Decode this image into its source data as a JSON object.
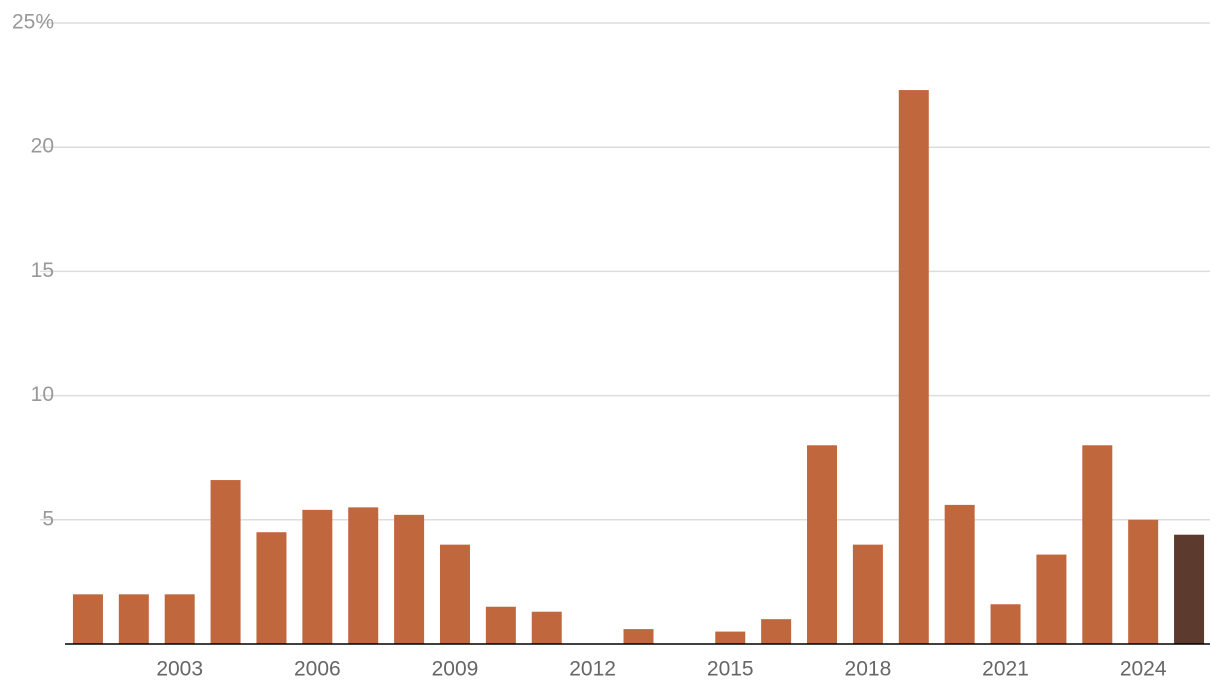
{
  "chart_data": {
    "type": "bar",
    "categories": [
      null,
      null,
      "2003",
      null,
      null,
      "2006",
      null,
      null,
      "2009",
      null,
      null,
      "2012",
      null,
      null,
      "2015",
      null,
      null,
      "2018",
      null,
      null,
      "2021",
      null,
      null,
      "2024",
      null
    ],
    "values": [
      2,
      2,
      2,
      6.6,
      4.5,
      5.4,
      5.5,
      5.2,
      4,
      1.5,
      1.3,
      0,
      0.6,
      0,
      0.5,
      1,
      8,
      4,
      22.3,
      5.6,
      1.6,
      3.6,
      8,
      5,
      4.4
    ],
    "colors": [
      "#c0673e",
      "#c0673e",
      "#c0673e",
      "#c0673e",
      "#c0673e",
      "#c0673e",
      "#c0673e",
      "#c0673e",
      "#c0673e",
      "#c0673e",
      "#c0673e",
      "#c0673e",
      "#c0673e",
      "#c0673e",
      "#c0673e",
      "#c0673e",
      "#c0673e",
      "#c0673e",
      "#c0673e",
      "#c0673e",
      "#c0673e",
      "#c0673e",
      "#c0673e",
      "#c0673e",
      "#5c3a2d"
    ],
    "ylim": [
      0,
      25
    ],
    "yticks": [
      5,
      10,
      15,
      20,
      {
        "value": 25,
        "label": "25%"
      }
    ],
    "grid": true
  }
}
